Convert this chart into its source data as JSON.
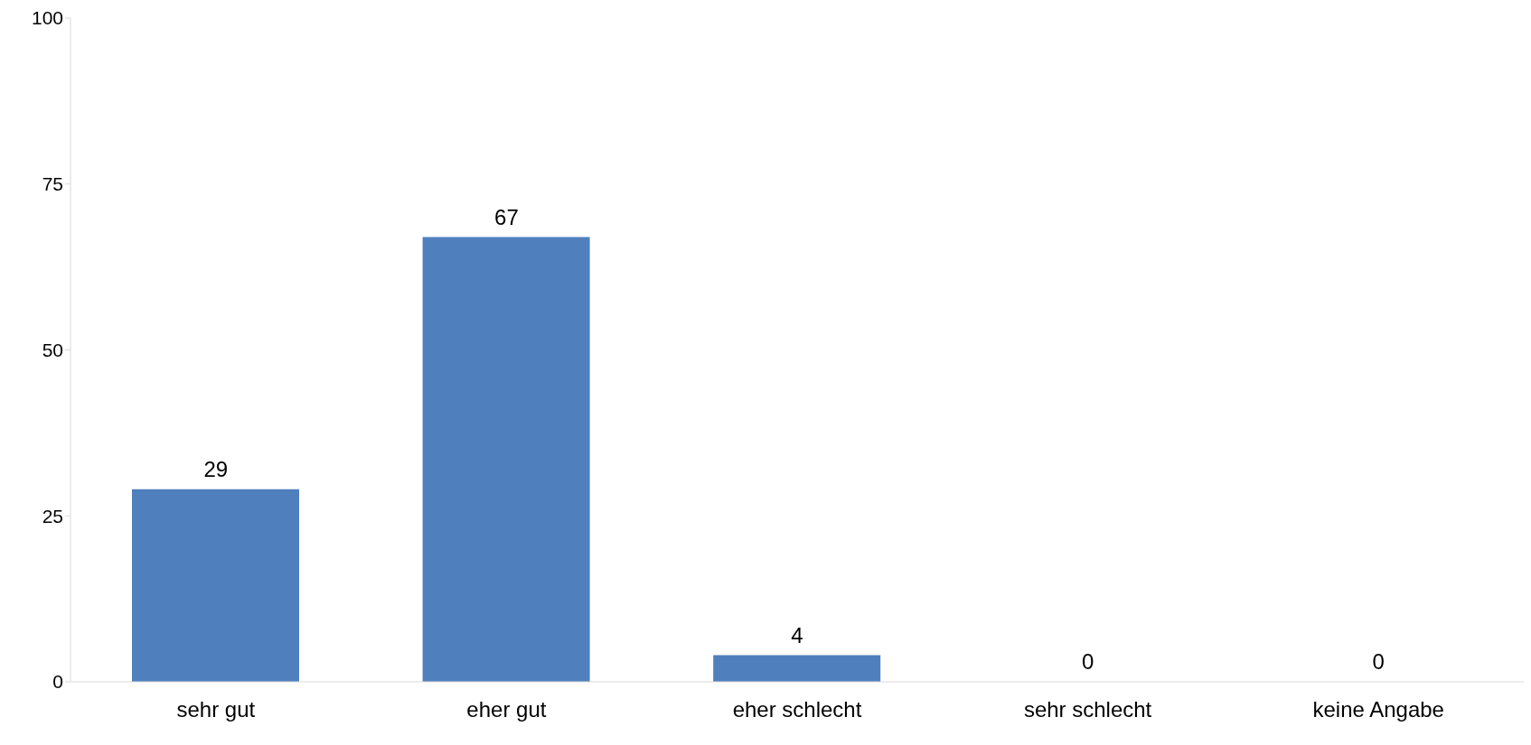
{
  "chart_data": {
    "type": "bar",
    "categories": [
      "sehr gut",
      "eher gut",
      "eher schlecht",
      "sehr schlecht",
      "keine Angabe"
    ],
    "values": [
      29,
      67,
      4,
      0,
      0
    ],
    "color": "#4f7fbc",
    "ylim": [
      0,
      100
    ],
    "yticks": [
      0,
      25,
      50,
      75,
      100
    ],
    "grid": false,
    "data_labels": true
  }
}
